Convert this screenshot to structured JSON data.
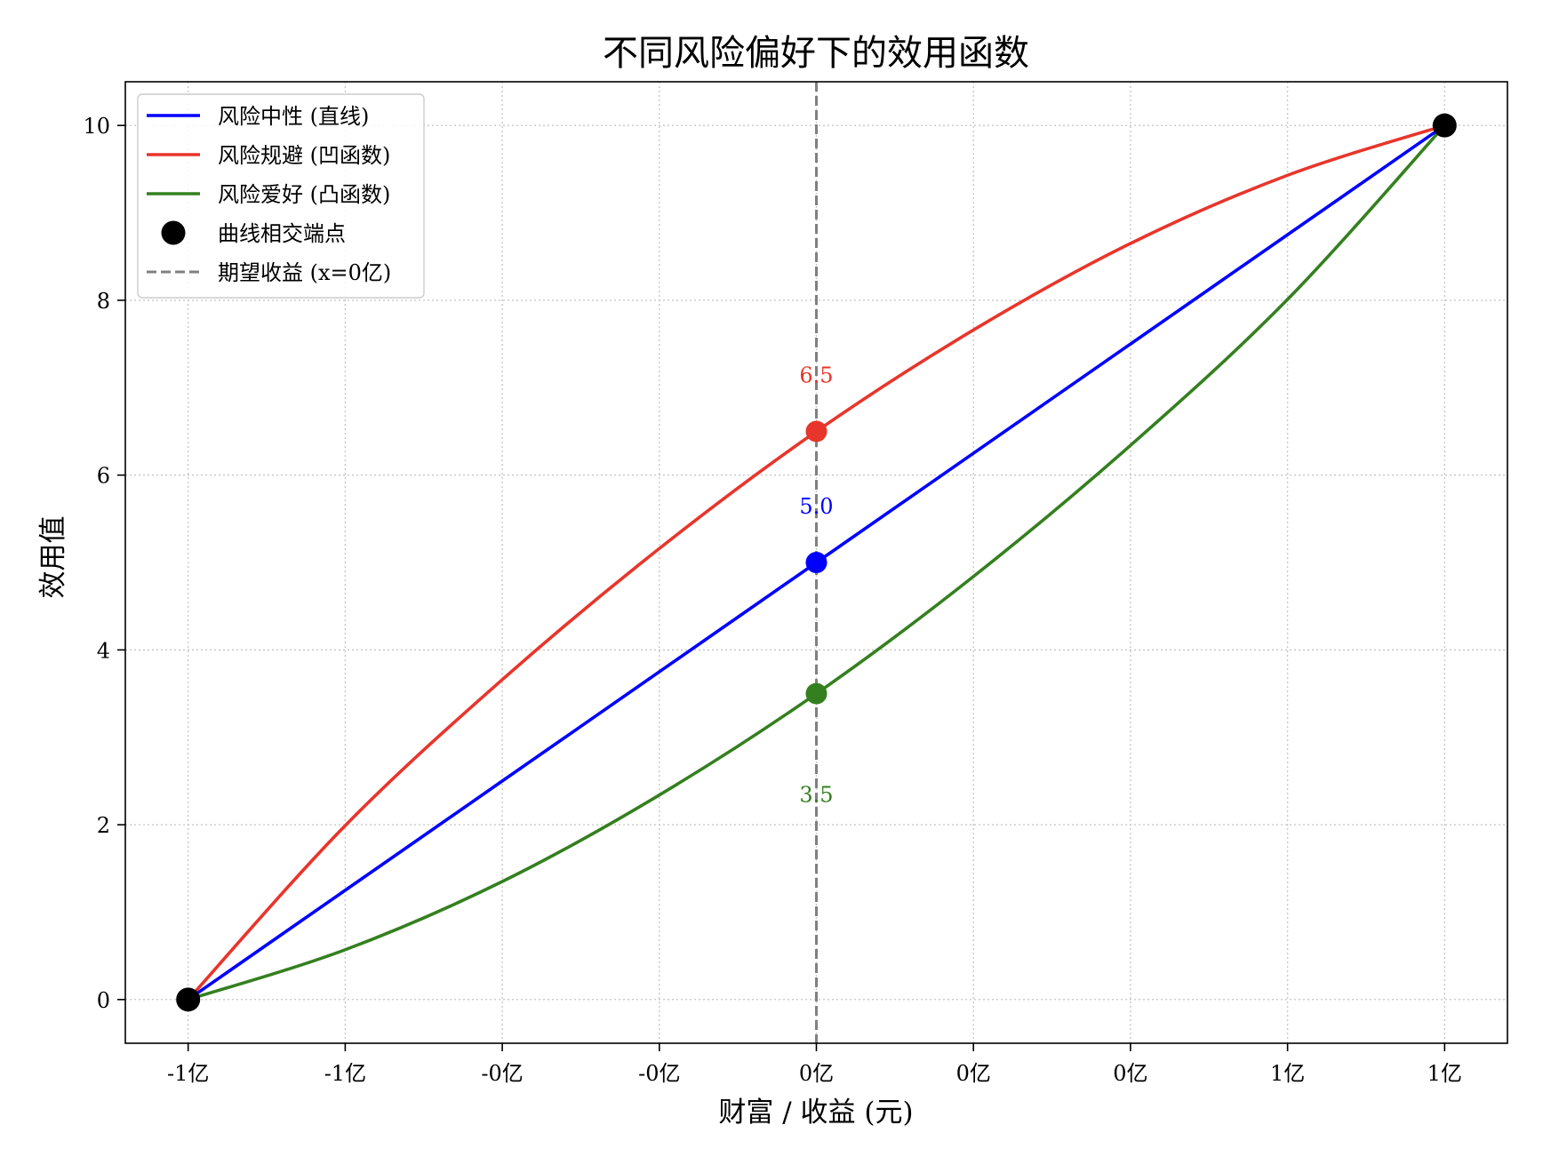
{
  "chart_data": {
    "type": "line",
    "title": "不同风险偏好下的效用函数",
    "xlabel": "财富 / 收益 (元)",
    "ylabel": "效用值",
    "xlim": [
      -1.1,
      1.1
    ],
    "ylim": [
      -0.5,
      10.5
    ],
    "x_ticks": [
      -1.0,
      -0.75,
      -0.5,
      -0.25,
      0.0,
      0.25,
      0.5,
      0.75,
      1.0
    ],
    "x_tick_labels": [
      "-1亿",
      "-1亿",
      "-0亿",
      "-0亿",
      "0亿",
      "0亿",
      "0亿",
      "1亿",
      "1亿"
    ],
    "y_ticks": [
      0,
      2,
      4,
      6,
      8,
      10
    ],
    "y_tick_labels": [
      "0",
      "2",
      "4",
      "6",
      "8",
      "10"
    ],
    "grid": true,
    "legend_position": "top-left",
    "series": [
      {
        "name": "风险中性 (直线)",
        "color": "#0000ff",
        "x": [
          -1.0,
          -0.75,
          -0.5,
          -0.25,
          0.0,
          0.25,
          0.5,
          0.75,
          1.0
        ],
        "y": [
          0.0,
          1.25,
          2.5,
          3.75,
          5.0,
          6.25,
          7.5,
          8.75,
          10.0
        ]
      },
      {
        "name": "风险规避 (凹函数)",
        "color": "#e8352b",
        "x": [
          -1.0,
          -0.75,
          -0.5,
          -0.25,
          0.0,
          0.25,
          0.5,
          0.75,
          1.0
        ],
        "y": [
          0.0,
          1.99,
          3.66,
          5.16,
          6.5,
          7.66,
          8.65,
          9.43,
          10.0
        ]
      },
      {
        "name": "风险爱好 (凸函数)",
        "color": "#34801f",
        "x": [
          -1.0,
          -0.75,
          -0.5,
          -0.25,
          0.0,
          0.25,
          0.5,
          0.75,
          1.0
        ],
        "y": [
          0.0,
          0.57,
          1.35,
          2.34,
          3.5,
          4.84,
          6.34,
          8.01,
          10.0
        ]
      }
    ],
    "endpoints": {
      "name": "曲线相交端点",
      "color": "#000000",
      "points": [
        [
          -1.0,
          0.0
        ],
        [
          1.0,
          10.0
        ]
      ]
    },
    "vline": {
      "name": "期望收益 (x=0亿)",
      "x": 0.0,
      "color": "#808080"
    },
    "annotations": [
      {
        "x": 0.0,
        "y": 6.5,
        "text": "6.5",
        "color": "#e8352b",
        "label_offset": 0.65
      },
      {
        "x": 0.0,
        "y": 5.0,
        "text": "5.0",
        "color": "#0000ff",
        "label_offset": 0.65
      },
      {
        "x": 0.0,
        "y": 3.5,
        "text": "3.5",
        "color": "#34801f",
        "label_offset": -1.15
      }
    ]
  }
}
